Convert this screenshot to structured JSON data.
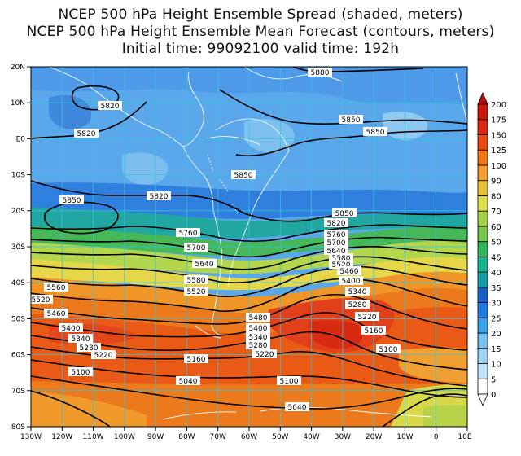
{
  "titles": {
    "line1": "NCEP 500 hPa Height Ensemble Spread (shaded, meters)",
    "line2": "NCEP 500 hPa Height Ensemble Mean Forecast (contours, meters)",
    "line3": "Initial time: 99092100   valid time: 192h"
  },
  "map": {
    "lon_ticks": [
      "130W",
      "120W",
      "110W",
      "100W",
      "90W",
      "80W",
      "70W",
      "60W",
      "50W",
      "40W",
      "30W",
      "20W",
      "10W",
      "0",
      "10E"
    ],
    "lat_ticks": [
      "20N",
      "10N",
      "E0",
      "10S",
      "20S",
      "30S",
      "40S",
      "50S",
      "60S",
      "70S",
      "80S"
    ]
  },
  "colorbar": {
    "labels": [
      "0",
      "5",
      "10",
      "15",
      "20",
      "25",
      "30",
      "35",
      "40",
      "45",
      "50",
      "60",
      "70",
      "80",
      "90",
      "100",
      "125",
      "150",
      "175",
      "200"
    ],
    "colors": [
      "#fefefe",
      "#bfe5fb",
      "#9fd6f5",
      "#79c3f2",
      "#3aa3ec",
      "#1e7be0",
      "#1860c8",
      "#179ca8",
      "#17b28f",
      "#30b55a",
      "#78c84c",
      "#a4d04a",
      "#dee04a",
      "#ebc23c",
      "#f4a030",
      "#f07818",
      "#e84c12",
      "#d82a10",
      "#c81808",
      "#b40c0c"
    ]
  },
  "contours": [
    {
      "value": "5880",
      "label": "5880"
    },
    {
      "value": "5850",
      "label": "5850"
    },
    {
      "value": "5820",
      "label": "5820"
    },
    {
      "value": "5760",
      "label": "5760"
    },
    {
      "value": "5700",
      "label": "5700"
    },
    {
      "value": "5640",
      "label": "5640"
    },
    {
      "value": "5580",
      "label": "5580"
    },
    {
      "value": "5520",
      "label": "5520"
    },
    {
      "value": "5460",
      "label": "5460"
    },
    {
      "value": "5400",
      "label": "5400"
    },
    {
      "value": "5340",
      "label": "5340"
    },
    {
      "value": "5280",
      "label": "5280"
    },
    {
      "value": "5220",
      "label": "5220"
    },
    {
      "value": "5160",
      "label": "5160"
    },
    {
      "value": "5100",
      "label": "5100"
    },
    {
      "value": "5040",
      "label": "5040"
    }
  ]
}
